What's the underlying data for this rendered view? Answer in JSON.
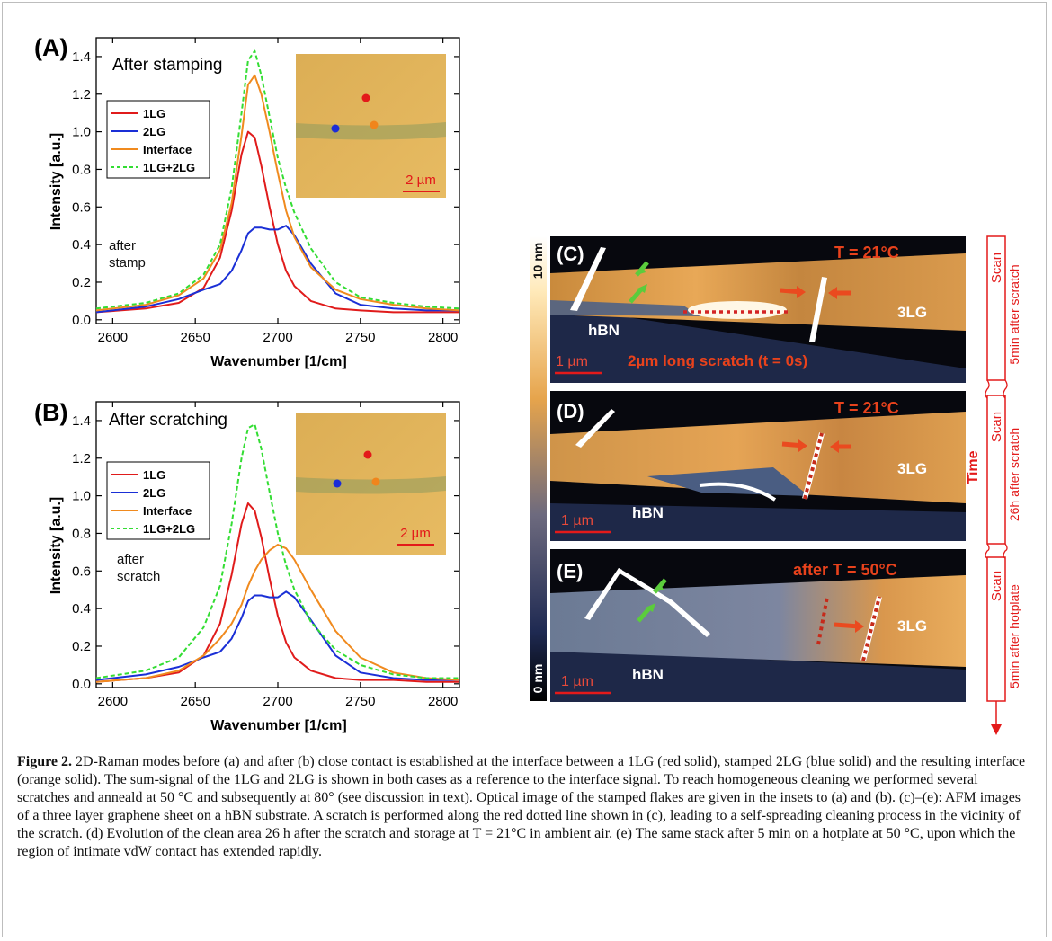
{
  "panel_a": {
    "letter": "(A)",
    "title": "After stamping",
    "note_line1": "after",
    "note_line2": "stamp",
    "scalebar": "2 µm",
    "legend": [
      "1LG",
      "2LG",
      "Interface",
      "1LG+2LG"
    ],
    "xlabel": "Wavenumber [1/cm]",
    "ylabel": "Intensity [a.u.]"
  },
  "panel_b": {
    "letter": "(B)",
    "title": "After scratching",
    "note_line1": "after",
    "note_line2": "scratch",
    "scalebar": "2 µm",
    "legend": [
      "1LG",
      "2LG",
      "Interface",
      "1LG+2LG"
    ],
    "xlabel": "Wavenumber [1/cm]",
    "ylabel": "Intensity [a.u.]"
  },
  "axis": {
    "xticks": [
      "2600",
      "2650",
      "2700",
      "2750",
      "2800"
    ],
    "yticks": [
      "0.0",
      "0.2",
      "0.4",
      "0.6",
      "0.8",
      "1.0",
      "1.2",
      "1.4"
    ]
  },
  "colors": {
    "1LG": "#e01b1b",
    "2LG": "#1a2fd6",
    "Interface": "#f08a1e",
    "sum": "#33dd33"
  },
  "chart_data": [
    {
      "type": "line",
      "title": "After stamping",
      "xlabel": "Wavenumber [1/cm]",
      "ylabel": "Intensity [a.u.]",
      "xlim": [
        2590,
        2810
      ],
      "ylim": [
        -0.02,
        1.5
      ],
      "x": [
        2590,
        2620,
        2640,
        2655,
        2665,
        2672,
        2678,
        2682,
        2686,
        2690,
        2695,
        2700,
        2705,
        2710,
        2720,
        2735,
        2750,
        2770,
        2790,
        2810
      ],
      "series": [
        {
          "name": "1LG",
          "values": [
            0.04,
            0.06,
            0.09,
            0.17,
            0.33,
            0.58,
            0.88,
            1.0,
            0.97,
            0.82,
            0.6,
            0.4,
            0.26,
            0.18,
            0.1,
            0.06,
            0.05,
            0.04,
            0.04,
            0.04
          ]
        },
        {
          "name": "2LG",
          "values": [
            0.04,
            0.07,
            0.11,
            0.16,
            0.19,
            0.26,
            0.37,
            0.46,
            0.49,
            0.49,
            0.48,
            0.48,
            0.5,
            0.45,
            0.3,
            0.14,
            0.08,
            0.06,
            0.05,
            0.05
          ]
        },
        {
          "name": "Interface",
          "values": [
            0.05,
            0.08,
            0.13,
            0.22,
            0.37,
            0.62,
            0.98,
            1.25,
            1.3,
            1.2,
            1.0,
            0.78,
            0.58,
            0.44,
            0.28,
            0.16,
            0.11,
            0.08,
            0.06,
            0.05
          ]
        },
        {
          "name": "1LG+2LG",
          "values": [
            0.06,
            0.09,
            0.14,
            0.24,
            0.4,
            0.7,
            1.1,
            1.38,
            1.43,
            1.3,
            1.08,
            0.86,
            0.7,
            0.57,
            0.38,
            0.2,
            0.12,
            0.09,
            0.07,
            0.06
          ]
        }
      ]
    },
    {
      "type": "line",
      "title": "After scratching",
      "xlabel": "Wavenumber [1/cm]",
      "ylabel": "Intensity [a.u.]",
      "xlim": [
        2590,
        2810
      ],
      "ylim": [
        -0.02,
        1.5
      ],
      "x": [
        2590,
        2620,
        2640,
        2655,
        2665,
        2672,
        2678,
        2682,
        2686,
        2690,
        2695,
        2700,
        2705,
        2710,
        2720,
        2735,
        2750,
        2770,
        2790,
        2810
      ],
      "series": [
        {
          "name": "1LG",
          "values": [
            0.01,
            0.03,
            0.06,
            0.15,
            0.32,
            0.58,
            0.85,
            0.96,
            0.92,
            0.78,
            0.56,
            0.36,
            0.22,
            0.14,
            0.07,
            0.03,
            0.02,
            0.02,
            0.01,
            0.01
          ]
        },
        {
          "name": "2LG",
          "values": [
            0.02,
            0.05,
            0.09,
            0.14,
            0.17,
            0.24,
            0.35,
            0.44,
            0.47,
            0.47,
            0.46,
            0.46,
            0.49,
            0.46,
            0.34,
            0.15,
            0.06,
            0.03,
            0.02,
            0.02
          ]
        },
        {
          "name": "Interface",
          "values": [
            0.01,
            0.03,
            0.07,
            0.15,
            0.24,
            0.32,
            0.42,
            0.52,
            0.6,
            0.66,
            0.71,
            0.74,
            0.72,
            0.66,
            0.5,
            0.28,
            0.14,
            0.06,
            0.03,
            0.02
          ]
        },
        {
          "name": "1LG+2LG",
          "values": [
            0.03,
            0.07,
            0.14,
            0.3,
            0.52,
            0.85,
            1.2,
            1.36,
            1.38,
            1.25,
            1.02,
            0.8,
            0.63,
            0.5,
            0.33,
            0.18,
            0.1,
            0.05,
            0.03,
            0.03
          ]
        }
      ]
    }
  ],
  "afm": {
    "colorbar_top": "10 nm",
    "colorbar_bottom": "0 nm",
    "time_label": "Time",
    "c": {
      "letter": "(C)",
      "temp": "T = 21°C",
      "hbn": "hBN",
      "layer": "3LG",
      "scalebar": "1 µm",
      "scratch": "2µm long scratch (t = 0s)",
      "scan_title": "Scan",
      "scan_sub": "5min after scratch"
    },
    "d": {
      "letter": "(D)",
      "temp": "T = 21°C",
      "hbn": "hBN",
      "layer": "3LG",
      "scalebar": "1 µm",
      "scan_title": "Scan",
      "scan_sub": "26h after scratch"
    },
    "e": {
      "letter": "(E)",
      "temp": "after T = 50°C",
      "hbn": "hBN",
      "layer": "3LG",
      "scalebar": "1 µm",
      "scan_title": "Scan",
      "scan_sub": "5min after hotplate"
    }
  },
  "caption": {
    "label": "Figure 2.",
    "text": " 2D-Raman modes before (a) and after (b) close contact is established at the interface between a 1LG (red solid), stamped 2LG (blue solid) and the resulting interface (orange solid). The sum-signal of the 1LG and 2LG is shown in both cases as a reference to the interface signal. To reach homogeneous cleaning we performed several scratches and anneald at 50 °C and subsequently at 80° (see discussion in text). Optical image of the stamped flakes are given in the insets to (a) and (b). (c)–(e): AFM images of a three layer graphene sheet on a hBN substrate. A scratch is performed along the red dotted line shown in (c), leading to a self-spreading cleaning process in the vicinity of the scratch. (d) Evolution of the clean area 26 h after the scratch and storage at T = 21°C in ambient air. (e) The same stack after 5 min on a hotplate at 50 °C, upon which the region of intimate vdW contact has extended rapidly."
  }
}
